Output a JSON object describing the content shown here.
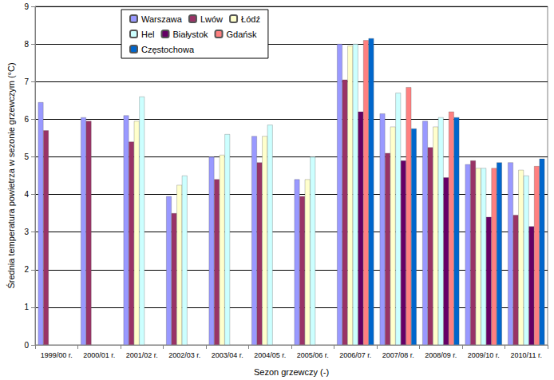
{
  "chart_data": {
    "type": "bar",
    "x_label": "Sezon grzewczy (-)",
    "y_label": "Średnia temperatura powietrza w sezonie grzewczym (°C)",
    "categories": [
      "1999/00 r.",
      "2000/01 r.",
      "2001/02 r.",
      "2002/03 r.",
      "2003/04 r.",
      "2004/05 r.",
      "2005/06 r.",
      "2006/07 r.",
      "2007/08 r.",
      "2008/09 r.",
      "2009/10 r.",
      "2010/11 r."
    ],
    "series": [
      {
        "name": "Warszawa",
        "color": "#9999ff",
        "values": [
          6.45,
          6.05,
          6.1,
          3.95,
          5.0,
          5.55,
          4.4,
          8.0,
          6.15,
          5.95,
          4.8,
          4.85
        ]
      },
      {
        "name": "Lwów",
        "color": "#993366",
        "values": [
          5.7,
          5.95,
          5.4,
          3.5,
          4.4,
          4.85,
          3.95,
          7.05,
          5.1,
          5.25,
          4.9,
          3.45
        ]
      },
      {
        "name": "Łódź",
        "color": "#ffffcc",
        "values": [
          null,
          null,
          5.95,
          4.25,
          5.05,
          5.55,
          4.4,
          7.95,
          5.8,
          5.8,
          4.7,
          4.65
        ]
      },
      {
        "name": "Hel",
        "color": "#ccffff",
        "values": [
          null,
          null,
          6.6,
          4.5,
          5.6,
          5.85,
          5.0,
          8.0,
          6.7,
          6.05,
          4.7,
          4.5
        ]
      },
      {
        "name": "Białystok",
        "color": "#660066",
        "values": [
          null,
          null,
          null,
          null,
          null,
          null,
          null,
          6.2,
          4.9,
          4.45,
          3.4,
          3.15
        ]
      },
      {
        "name": "Gdańsk",
        "color": "#ff8080",
        "values": [
          null,
          null,
          null,
          null,
          null,
          null,
          null,
          8.1,
          6.85,
          6.2,
          4.7,
          4.75
        ]
      },
      {
        "name": "Częstochowa",
        "color": "#0066cc",
        "values": [
          null,
          null,
          null,
          null,
          null,
          null,
          null,
          8.15,
          5.75,
          6.05,
          4.85,
          4.95
        ]
      }
    ],
    "ylim": [
      0,
      9
    ],
    "yticks": [
      0,
      1,
      2,
      3,
      4,
      5,
      6,
      7,
      8,
      9
    ],
    "grid": true,
    "legend": "upper center"
  }
}
